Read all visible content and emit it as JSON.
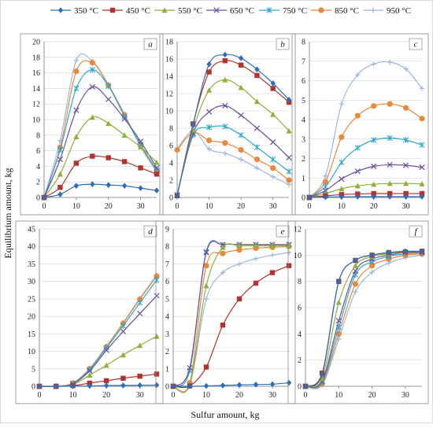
{
  "figure": {
    "ylabel": "Equilibrium amount, kg",
    "xlabel": "Sulfur amount, kg"
  },
  "legend": [
    {
      "name": "350 °C",
      "color": "#2e6eb5",
      "marker": "diamond"
    },
    {
      "name": "450 °C",
      "color": "#b3322f",
      "marker": "square"
    },
    {
      "name": "550 °C",
      "color": "#8fae3a",
      "marker": "triangle"
    },
    {
      "name": "650 °C",
      "color": "#6b4f9c",
      "marker": "x"
    },
    {
      "name": "750 °C",
      "color": "#31a9c9",
      "marker": "star"
    },
    {
      "name": "850 °C",
      "color": "#e8883a",
      "marker": "circle"
    },
    {
      "name": "950 °C",
      "color": "#9fb7dc",
      "marker": "plus"
    }
  ],
  "chart_data": [
    {
      "type": "line",
      "letter": "a",
      "x": [
        0,
        5,
        10,
        15,
        20,
        25,
        30,
        35
      ],
      "xlim": [
        0,
        35
      ],
      "xticks": [
        0,
        10,
        20,
        30
      ],
      "ylim": [
        0,
        20
      ],
      "yticks": [
        0,
        2,
        4,
        6,
        8,
        10,
        12,
        14,
        16,
        18,
        20
      ],
      "grid": true,
      "series": [
        {
          "name": "350 °C",
          "values": [
            0,
            0.4,
            1.5,
            1.7,
            1.6,
            1.5,
            1.2,
            0.9
          ]
        },
        {
          "name": "450 °C",
          "values": [
            0,
            1.3,
            4.4,
            5.3,
            5.1,
            4.6,
            3.8,
            3.0
          ]
        },
        {
          "name": "550 °C",
          "values": [
            0,
            3.0,
            7.8,
            10.3,
            9.5,
            8.0,
            6.5,
            4.5
          ]
        },
        {
          "name": "650 °C",
          "values": [
            0,
            4.9,
            11.2,
            14.2,
            12.6,
            10.1,
            7.2,
            3.8
          ]
        },
        {
          "name": "750 °C",
          "values": [
            0,
            6.1,
            14.0,
            16.4,
            14.3,
            10.4,
            6.8,
            3.5
          ]
        },
        {
          "name": "850 °C",
          "values": [
            0,
            6.4,
            16.2,
            17.3,
            14.4,
            10.6,
            6.7,
            3.4
          ]
        },
        {
          "name": "950 °C",
          "values": [
            0,
            7.3,
            17.6,
            17.5,
            14.5,
            10.7,
            6.5,
            3.3
          ]
        }
      ]
    },
    {
      "type": "line",
      "letter": "b",
      "x": [
        0,
        5,
        10,
        15,
        20,
        25,
        30,
        35
      ],
      "xlim": [
        0,
        35
      ],
      "xticks": [
        0,
        10,
        20,
        30
      ],
      "ylim": [
        0,
        18
      ],
      "yticks": [
        0,
        2,
        4,
        6,
        8,
        10,
        12,
        14,
        16,
        18
      ],
      "grid": true,
      "series": [
        {
          "name": "350 °C",
          "values": [
            0.2,
            8.4,
            15.4,
            16.5,
            16.1,
            14.8,
            13.2,
            11.3
          ]
        },
        {
          "name": "450 °C",
          "values": [
            0.2,
            8.5,
            14.5,
            15.8,
            15.3,
            14.1,
            12.6,
            11.0
          ]
        },
        {
          "name": "550 °C",
          "values": [
            0.3,
            7.8,
            12.4,
            13.6,
            12.7,
            11.1,
            9.6,
            7.7
          ]
        },
        {
          "name": "650 °C",
          "values": [
            0.3,
            7.4,
            9.9,
            10.6,
            9.5,
            8.0,
            6.4,
            4.6
          ]
        },
        {
          "name": "750 °C",
          "values": [
            0.3,
            7.2,
            8.1,
            8.2,
            7.2,
            5.8,
            4.4,
            3.0
          ]
        },
        {
          "name": "850 °C",
          "values": [
            5.5,
            7.5,
            6.6,
            6.3,
            5.5,
            4.4,
            3.4,
            2.0
          ]
        },
        {
          "name": "950 °C",
          "values": [
            5.6,
            7.7,
            5.6,
            5.1,
            4.4,
            3.4,
            2.4,
            1.5
          ]
        }
      ]
    },
    {
      "type": "line",
      "letter": "c",
      "x": [
        0,
        5,
        10,
        15,
        20,
        25,
        30,
        35
      ],
      "xlim": [
        0,
        35
      ],
      "xticks": [
        0,
        10,
        20,
        30
      ],
      "ylim": [
        0,
        8
      ],
      "yticks": [
        0,
        1,
        2,
        3,
        4,
        5,
        6,
        7,
        8
      ],
      "grid": true,
      "series": [
        {
          "name": "350 °C",
          "values": [
            0,
            0.02,
            0.03,
            0.04,
            0.04,
            0.04,
            0.04,
            0.04
          ]
        },
        {
          "name": "450 °C",
          "values": [
            0,
            0.08,
            0.15,
            0.18,
            0.2,
            0.2,
            0.2,
            0.2
          ]
        },
        {
          "name": "550 °C",
          "values": [
            0,
            0.2,
            0.45,
            0.6,
            0.68,
            0.72,
            0.72,
            0.7
          ]
        },
        {
          "name": "650 °C",
          "values": [
            0,
            0.35,
            0.95,
            1.35,
            1.6,
            1.68,
            1.65,
            1.55
          ]
        },
        {
          "name": "750 °C",
          "values": [
            0,
            0.55,
            1.8,
            2.55,
            2.95,
            3.05,
            2.95,
            2.7
          ]
        },
        {
          "name": "850 °C",
          "values": [
            0,
            0.8,
            3.1,
            4.2,
            4.7,
            4.8,
            4.6,
            4.05
          ]
        },
        {
          "name": "950 °C",
          "values": [
            0,
            1.1,
            4.8,
            6.3,
            6.85,
            6.95,
            6.6,
            5.6
          ]
        }
      ]
    },
    {
      "type": "line",
      "letter": "d",
      "x": [
        0,
        5,
        10,
        15,
        20,
        25,
        30,
        35
      ],
      "xlim": [
        0,
        35
      ],
      "xticks": [
        0,
        10,
        20,
        30
      ],
      "ylim": [
        0,
        45
      ],
      "yticks": [
        0,
        5,
        10,
        15,
        20,
        25,
        30,
        35,
        40,
        45
      ],
      "grid": true,
      "series": [
        {
          "name": "350 °C",
          "values": [
            0,
            0,
            0.05,
            0.1,
            0.2,
            0.25,
            0.3,
            0.35
          ]
        },
        {
          "name": "450 °C",
          "values": [
            0,
            0,
            0.2,
            0.9,
            1.6,
            2.3,
            2.9,
            3.5
          ]
        },
        {
          "name": "550 °C",
          "values": [
            0,
            0,
            0.5,
            3.2,
            6.0,
            9.0,
            11.7,
            14.3
          ]
        },
        {
          "name": "650 °C",
          "values": [
            0,
            0,
            0.7,
            4.4,
            10.3,
            15.7,
            20.8,
            25.9
          ]
        },
        {
          "name": "750 °C",
          "values": [
            0,
            0,
            0.8,
            4.8,
            11.0,
            17.3,
            23.9,
            30.4
          ]
        },
        {
          "name": "850 °C",
          "values": [
            0,
            0,
            0.9,
            5.0,
            11.3,
            18.0,
            24.9,
            31.5
          ]
        },
        {
          "name": "950 °C",
          "values": [
            0,
            0,
            0.9,
            5.1,
            11.4,
            18.2,
            25.2,
            31.8
          ]
        }
      ]
    },
    {
      "type": "line",
      "letter": "e",
      "x": [
        0,
        5,
        10,
        15,
        20,
        25,
        30,
        35
      ],
      "xlim": [
        0,
        35
      ],
      "xticks": [
        0,
        10,
        20,
        30
      ],
      "ylim": [
        0,
        9
      ],
      "yticks": [
        0,
        1,
        2,
        3,
        4,
        5,
        6,
        7,
        8,
        9
      ],
      "grid": true,
      "series": [
        {
          "name": "350 °C",
          "values": [
            0,
            0,
            0.02,
            0.05,
            0.08,
            0.1,
            0.12,
            0.2
          ]
        },
        {
          "name": "450 °C",
          "values": [
            0,
            0.02,
            1.1,
            3.5,
            5.0,
            5.9,
            6.5,
            6.9
          ]
        },
        {
          "name": "550 °C",
          "values": [
            0,
            0.1,
            5.75,
            7.95,
            8.05,
            8.05,
            8.05,
            8.05
          ]
        },
        {
          "name": "650 °C",
          "values": [
            0,
            1.05,
            7.65,
            8.1,
            8.1,
            8.1,
            8.1,
            8.1
          ]
        },
        {
          "name": "750 °C",
          "values": [
            0,
            0.9,
            7.7,
            8.1,
            8.1,
            8.1,
            8.1,
            8.1
          ]
        },
        {
          "name": "850 °C",
          "values": [
            0,
            0.2,
            6.9,
            7.6,
            7.8,
            7.9,
            7.95,
            8.0
          ]
        },
        {
          "name": "950 °C",
          "values": [
            0,
            0.1,
            5.0,
            6.5,
            7.0,
            7.3,
            7.5,
            7.65
          ]
        }
      ]
    },
    {
      "type": "line",
      "letter": "f",
      "x": [
        0,
        5,
        10,
        15,
        20,
        25,
        30,
        35
      ],
      "xlim": [
        0,
        35
      ],
      "xticks": [
        0,
        10,
        20,
        30
      ],
      "ylim": [
        0,
        12
      ],
      "yticks": [
        0,
        2,
        4,
        6,
        8,
        10,
        12
      ],
      "grid": true,
      "series": [
        {
          "name": "350 °C",
          "values": [
            0,
            0.9,
            8.0,
            9.6,
            10.0,
            10.2,
            10.3,
            10.3
          ]
        },
        {
          "name": "450 °C",
          "values": [
            0,
            1.0,
            8.0,
            9.6,
            10.0,
            10.2,
            10.25,
            10.3
          ]
        },
        {
          "name": "550 °C",
          "values": [
            0,
            0.6,
            6.4,
            9.2,
            9.9,
            10.1,
            10.2,
            10.3
          ]
        },
        {
          "name": "650 °C",
          "values": [
            0,
            0.4,
            5.0,
            8.8,
            9.7,
            10.0,
            10.2,
            10.2
          ]
        },
        {
          "name": "750 °C",
          "values": [
            0,
            0.3,
            4.5,
            8.5,
            9.5,
            9.9,
            10.1,
            10.2
          ]
        },
        {
          "name": "850 °C",
          "values": [
            0,
            0.2,
            4.0,
            7.8,
            9.2,
            9.7,
            10.0,
            10.1
          ]
        },
        {
          "name": "950 °C",
          "values": [
            0,
            0.1,
            3.6,
            7.2,
            8.7,
            9.4,
            9.8,
            10.0
          ]
        }
      ]
    }
  ]
}
